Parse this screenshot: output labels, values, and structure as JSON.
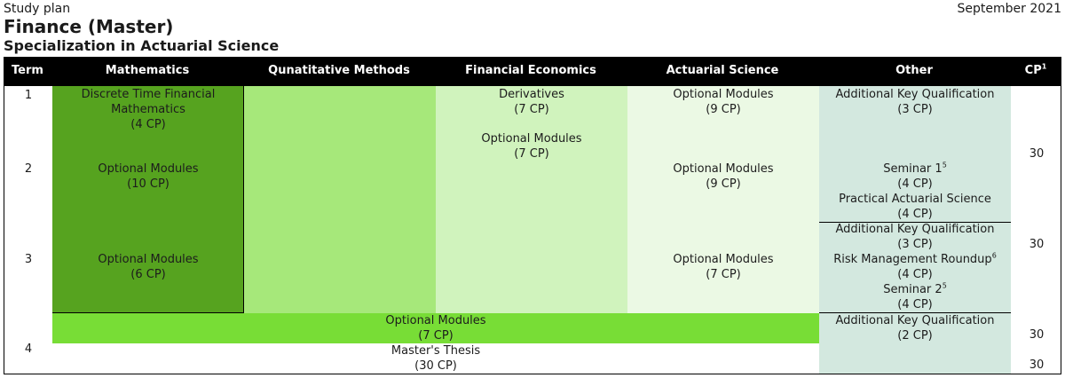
{
  "header": {
    "kicker": "Study plan",
    "date": "September 2021",
    "title": "Finance (Master)",
    "subtitle": "Specialization in Actuarial Science"
  },
  "columns": {
    "term": "Term",
    "mathematics": "Mathematics",
    "quant": "Qunatitative Methods",
    "fin_econ": "Financial Economics",
    "actuarial": "Actuarial Science",
    "other": "Other",
    "cp": "CP",
    "cp_note": "1"
  },
  "terms": [
    "1",
    "2",
    "3",
    "4"
  ],
  "cells": {
    "math_t1": {
      "line1": "Discrete Time Financial",
      "line2": "Mathematics",
      "cp": "(4 CP)"
    },
    "math_t2": {
      "name": "Optional Modules",
      "cp": "(10 CP)"
    },
    "math_t3": {
      "name": "Optional Modules",
      "cp": "(6 CP)"
    },
    "fin_t1a": {
      "name": "Derivatives",
      "cp": "(7 CP)"
    },
    "fin_t1b": {
      "name": "Optional Modules",
      "cp": "(7 CP)"
    },
    "act_t1": {
      "name": "Optional Modules",
      "cp": "(9 CP)"
    },
    "act_t2": {
      "name": "Optional Modules",
      "cp": "(9 CP)"
    },
    "act_t3": {
      "name": "Optional Modules",
      "cp": "(7 CP)"
    },
    "other_t1": {
      "name": "Additional Key Qualification",
      "cp": "(3 CP)"
    },
    "other_t2a": {
      "name": "Seminar 1",
      "note": "5",
      "cp": "(4 CP)"
    },
    "other_t2b": {
      "name": "Practical Actuarial Science",
      "cp": "(4 CP)"
    },
    "other_t3a": {
      "name": "Additional Key Qualification",
      "cp": "(3 CP)"
    },
    "other_t3b": {
      "name": "Risk Management Roundup",
      "note": "6",
      "cp": "(4 CP)"
    },
    "other_t3c": {
      "name": "Seminar 2",
      "note": "5",
      "cp": "(4 CP)"
    },
    "t4_optional": {
      "name": "Optional Modules",
      "cp": "(7 CP)"
    },
    "t4_thesis": {
      "name": "Master's Thesis",
      "cp": "(30 CP)"
    },
    "other_t4": {
      "name": "Additional Key Qualification",
      "cp": "(2 CP)"
    }
  },
  "cp_totals": [
    "30",
    "30",
    "30",
    "30"
  ],
  "colors": {
    "header_bg": "#000000",
    "mathematics": "#56a31f",
    "quant": "#a6e87a",
    "fin_econ": "#d0f3bd",
    "actuarial": "#ebf9e4",
    "other": "#d3e8df",
    "optional_bar": "#78dd36"
  }
}
